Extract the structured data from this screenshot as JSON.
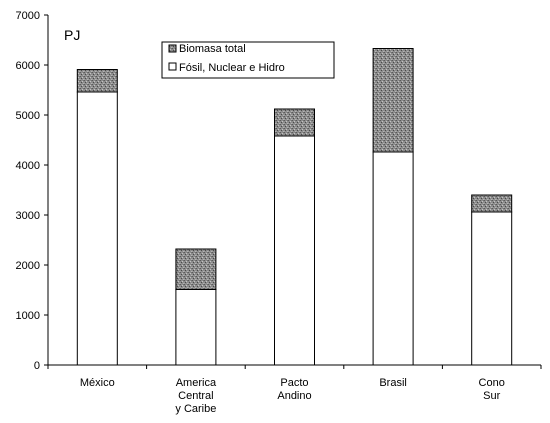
{
  "chart_data": {
    "type": "bar",
    "stacked": true,
    "unit_label": "PJ",
    "categories": [
      [
        "México"
      ],
      [
        "America",
        "Central",
        "y Caribe"
      ],
      [
        "Pacto",
        "Andino"
      ],
      [
        "Brasil"
      ],
      [
        "Cono",
        "Sur"
      ]
    ],
    "series": [
      {
        "name": "Fósil, Nuclear e Hidro",
        "values": [
          5460,
          1510,
          4580,
          4260,
          3060
        ],
        "color": "#ffffff"
      },
      {
        "name": "Biomasa total",
        "values": [
          450,
          810,
          540,
          2070,
          340
        ],
        "color": "#8c8c8c"
      }
    ],
    "ylim": [
      0,
      7000
    ],
    "yticks": [
      0,
      1000,
      2000,
      3000,
      4000,
      5000,
      6000,
      7000
    ],
    "grid": false,
    "legend_position": "top-center"
  }
}
